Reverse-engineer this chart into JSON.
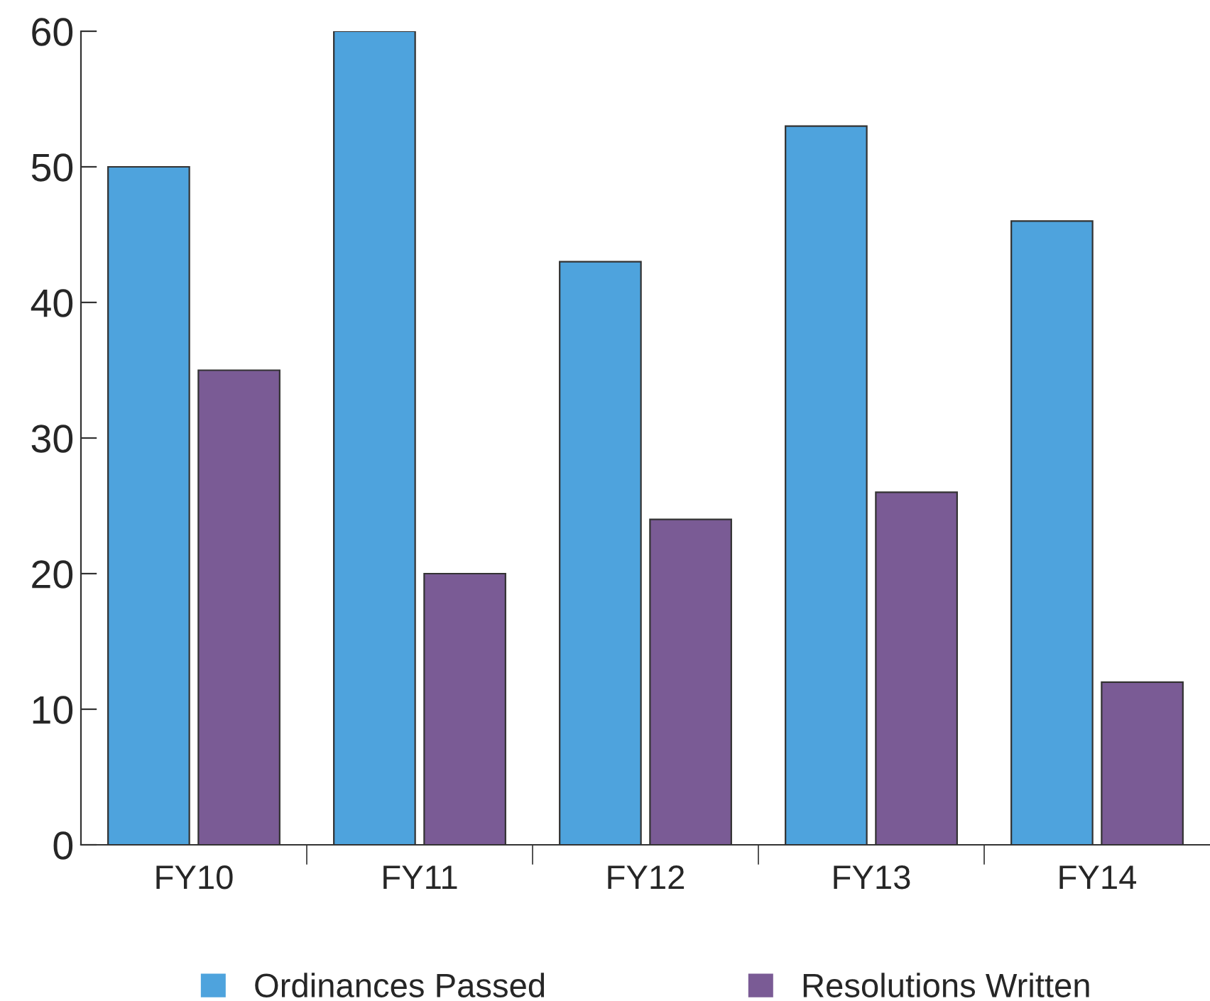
{
  "chart_data": {
    "type": "bar",
    "categories": [
      "FY10",
      "FY11",
      "FY12",
      "FY13",
      "FY14"
    ],
    "series": [
      {
        "name": "Ordinances Passed",
        "color": "#4ea3dd",
        "values": [
          50,
          60,
          43,
          53,
          46
        ]
      },
      {
        "name": "Resolutions Written",
        "color": "#7a5b95",
        "values": [
          35,
          20,
          24,
          26,
          12
        ]
      }
    ],
    "ylim": [
      0,
      60
    ],
    "yticks": [
      0,
      10,
      20,
      30,
      40,
      50,
      60
    ],
    "grid": false,
    "legend": "bottom"
  }
}
